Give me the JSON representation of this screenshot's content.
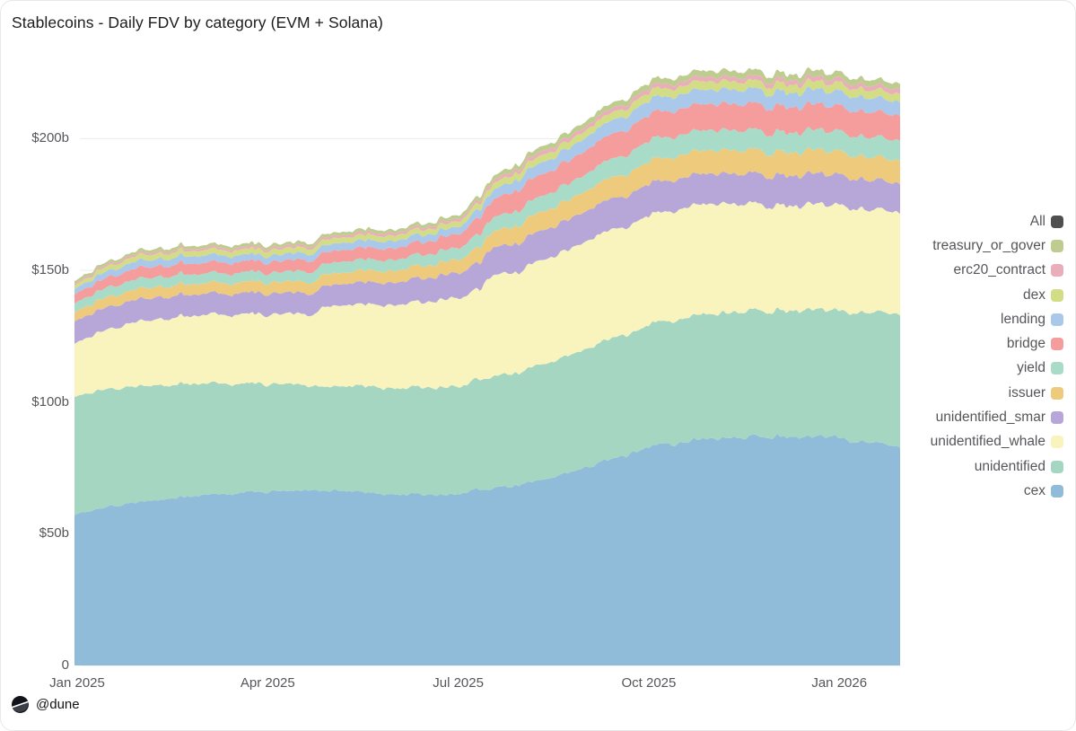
{
  "title": "Stablecoins - Daily FDV by category (EVM + Solana)",
  "footer": {
    "handle": "@dune",
    "logo_icon": "dune-logo"
  },
  "chart_data": {
    "type": "area",
    "stacked": true,
    "title": "Stablecoins - Daily FDV by category (EVM + Solana)",
    "unit": "USD billions (FDV per day)",
    "grid": "horizontal",
    "legend_position": "right",
    "ylim": [
      0,
      235
    ],
    "y_tick_values": [
      0,
      50,
      100,
      150,
      200
    ],
    "y_tick_labels": [
      "0",
      "$50b",
      "$100b",
      "$150b",
      "$200b"
    ],
    "x_tick_labels": [
      "Jan 2025",
      "Apr 2025",
      "Jul 2025",
      "Oct 2025",
      "Jan 2026"
    ],
    "x_tick_months": [
      0,
      3,
      6,
      9,
      12
    ],
    "x_range_months": [
      0,
      13
    ],
    "legend_all": {
      "label": "All",
      "color": "#4f4f4f"
    },
    "series_note": "bottom-to-top stack order; points are [month_index_from_Jan2025, value_$billions] read off the chart",
    "series": [
      {
        "name": "cex",
        "color": "#90bcd9",
        "points": [
          [
            0,
            58
          ],
          [
            1,
            62
          ],
          [
            2,
            64.5
          ],
          [
            3,
            66
          ],
          [
            4,
            66.5
          ],
          [
            5,
            65
          ],
          [
            6,
            65
          ],
          [
            7,
            68.5
          ],
          [
            8,
            74.5
          ],
          [
            9,
            83
          ],
          [
            10,
            86
          ],
          [
            11,
            87
          ],
          [
            12,
            86.5
          ],
          [
            13,
            83
          ]
        ]
      },
      {
        "name": "unidentified",
        "color": "#a5d6c1",
        "points": [
          [
            0,
            45.5
          ],
          [
            1,
            44
          ],
          [
            2,
            42.5
          ],
          [
            3,
            41
          ],
          [
            4,
            39.5
          ],
          [
            5,
            40.5
          ],
          [
            6,
            41
          ],
          [
            7,
            43
          ],
          [
            8,
            45
          ],
          [
            9,
            46.5
          ],
          [
            10,
            47.5
          ],
          [
            11,
            48
          ],
          [
            12,
            48
          ],
          [
            13,
            50.5
          ]
        ]
      },
      {
        "name": "unidentified_whale",
        "color": "#f9f3bd",
        "points": [
          [
            0,
            20.5
          ],
          [
            1,
            24.5
          ],
          [
            2,
            26
          ],
          [
            3,
            26.5
          ],
          [
            3.8,
            27
          ],
          [
            3.9,
            30.5
          ],
          [
            5,
            31.5
          ],
          [
            6,
            33.5
          ],
          [
            6.4,
            34
          ],
          [
            6.5,
            38
          ],
          [
            7,
            38.5
          ],
          [
            8,
            41
          ],
          [
            9,
            41.5
          ],
          [
            10,
            42
          ],
          [
            11,
            40
          ],
          [
            12,
            40
          ],
          [
            13,
            38.5
          ]
        ]
      },
      {
        "name": "unidentified_smar",
        "color": "#b7a7d9",
        "points": [
          [
            0,
            8.5
          ],
          [
            1,
            8.5
          ],
          [
            2,
            8
          ],
          [
            3,
            8
          ],
          [
            4,
            8
          ],
          [
            5,
            8.5
          ],
          [
            6,
            9.5
          ],
          [
            7,
            11
          ],
          [
            8,
            11.5
          ],
          [
            9,
            12
          ],
          [
            10,
            11.5
          ],
          [
            11,
            11.5
          ],
          [
            12,
            11.5
          ],
          [
            13,
            11
          ]
        ]
      },
      {
        "name": "issuer",
        "color": "#eeca7c",
        "points": [
          [
            0,
            3.5
          ],
          [
            1,
            4
          ],
          [
            2,
            4
          ],
          [
            3,
            4.2
          ],
          [
            4,
            4.3
          ],
          [
            5,
            4.5
          ],
          [
            6,
            5
          ],
          [
            7,
            6.8
          ],
          [
            8,
            7.6
          ],
          [
            9,
            8.6
          ],
          [
            10,
            8.9
          ],
          [
            11,
            8.9
          ],
          [
            12,
            8.9
          ],
          [
            13,
            8.6
          ]
        ]
      },
      {
        "name": "yield",
        "color": "#a9dcc8",
        "points": [
          [
            0,
            3.4
          ],
          [
            1,
            3.8
          ],
          [
            2,
            3.7
          ],
          [
            3,
            3.7
          ],
          [
            4,
            4.1
          ],
          [
            5,
            4.1
          ],
          [
            6,
            4.5
          ],
          [
            7,
            5.8
          ],
          [
            8,
            6.4
          ],
          [
            9,
            7.9
          ],
          [
            10,
            7.6
          ],
          [
            11,
            7.6
          ],
          [
            12,
            7.6
          ],
          [
            13,
            7.6
          ]
        ]
      },
      {
        "name": "bridge",
        "color": "#f59c9c",
        "points": [
          [
            0,
            3.4
          ],
          [
            1,
            4.1
          ],
          [
            2,
            4.1
          ],
          [
            3,
            4.1
          ],
          [
            4,
            4.4
          ],
          [
            5,
            4.4
          ],
          [
            6,
            5.2
          ],
          [
            7,
            7.9
          ],
          [
            8,
            8.9
          ],
          [
            9,
            9.9
          ],
          [
            10,
            9.9
          ],
          [
            11,
            9.9
          ],
          [
            12,
            9.5
          ],
          [
            13,
            9.5
          ]
        ]
      },
      {
        "name": "lending",
        "color": "#a9c8ea",
        "points": [
          [
            0,
            2.1
          ],
          [
            1,
            2.7
          ],
          [
            2,
            2.8
          ],
          [
            3,
            2.4
          ],
          [
            4,
            2.7
          ],
          [
            5,
            2.8
          ],
          [
            6,
            2.7
          ],
          [
            7,
            4.1
          ],
          [
            8,
            4.9
          ],
          [
            9,
            5.5
          ],
          [
            10,
            5.5
          ],
          [
            11,
            5.5
          ],
          [
            12,
            5.5
          ],
          [
            13,
            5.2
          ]
        ]
      },
      {
        "name": "dex",
        "color": "#d3dd85",
        "points": [
          [
            0,
            1.4
          ],
          [
            1,
            2.1
          ],
          [
            2,
            2
          ],
          [
            3,
            2.1
          ],
          [
            4,
            2.1
          ],
          [
            5,
            2
          ],
          [
            6,
            2.1
          ],
          [
            7,
            2.7
          ],
          [
            8,
            2.7
          ],
          [
            9,
            3.1
          ],
          [
            10,
            3.1
          ],
          [
            11,
            3
          ],
          [
            12,
            3.1
          ],
          [
            13,
            3
          ]
        ]
      },
      {
        "name": "erc20_contract",
        "color": "#e9aeba",
        "points": [
          [
            0,
            0.7
          ],
          [
            1,
            0.8
          ],
          [
            2,
            0.8
          ],
          [
            3,
            0.9
          ],
          [
            4,
            0.9
          ],
          [
            5,
            1
          ],
          [
            6,
            1
          ],
          [
            7,
            1.4
          ],
          [
            8,
            1.5
          ],
          [
            9,
            1.7
          ],
          [
            10,
            1.7
          ],
          [
            11,
            1.7
          ],
          [
            12,
            1.7
          ],
          [
            13,
            1.7
          ]
        ]
      },
      {
        "name": "treasury_or_gover",
        "color": "#bfcc90",
        "points": [
          [
            0,
            1
          ],
          [
            1,
            1.1
          ],
          [
            2,
            1.1
          ],
          [
            3,
            1.1
          ],
          [
            4,
            1.2
          ],
          [
            5,
            1.2
          ],
          [
            6,
            1.3
          ],
          [
            7,
            1.8
          ],
          [
            8,
            2
          ],
          [
            9,
            2.2
          ],
          [
            10,
            2.3
          ],
          [
            11,
            2.3
          ],
          [
            12,
            2.3
          ],
          [
            13,
            2.2
          ]
        ]
      }
    ]
  }
}
